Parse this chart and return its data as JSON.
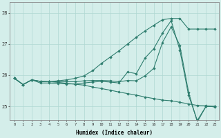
{
  "x": [
    0,
    1,
    2,
    3,
    4,
    5,
    6,
    7,
    8,
    9,
    10,
    11,
    12,
    13,
    14,
    15,
    16,
    17,
    18,
    19,
    20,
    21,
    22,
    23
  ],
  "series": [
    [
      25.9,
      25.7,
      25.85,
      25.75,
      25.75,
      25.73,
      25.72,
      25.72,
      25.75,
      25.78,
      25.8,
      25.78,
      25.75,
      26.1,
      26.05,
      26.55,
      26.85,
      27.35,
      27.75,
      26.8,
      25.35,
      24.55,
      25.0,
      25.0
    ],
    [
      25.9,
      25.7,
      25.85,
      25.8,
      25.79,
      25.82,
      25.85,
      25.9,
      25.98,
      26.15,
      26.38,
      26.58,
      26.78,
      27.0,
      27.22,
      27.42,
      27.6,
      27.78,
      27.82,
      27.82,
      27.48,
      27.48,
      27.48,
      27.48
    ],
    [
      25.9,
      25.7,
      25.85,
      25.8,
      25.79,
      25.77,
      25.74,
      25.71,
      25.68,
      25.62,
      25.57,
      25.52,
      25.46,
      25.41,
      25.36,
      25.3,
      25.25,
      25.2,
      25.18,
      25.13,
      25.08,
      25.03,
      25.02,
      24.98
    ],
    [
      25.9,
      25.7,
      25.85,
      25.8,
      25.79,
      25.79,
      25.79,
      25.79,
      25.82,
      25.83,
      25.83,
      25.82,
      25.79,
      25.83,
      25.82,
      25.98,
      26.22,
      27.05,
      27.55,
      26.95,
      25.45,
      24.5,
      25.0,
      25.0
    ]
  ],
  "line_color": "#2e7d6e",
  "marker_color": "#2e7d6e",
  "bg_color": "#d4eeea",
  "grid_color": "#b0d8d2",
  "xlabel": "Humidex (Indice chaleur)",
  "yticks": [
    25,
    26,
    27,
    28
  ],
  "ylim": [
    24.55,
    28.35
  ],
  "xlim": [
    -0.5,
    23.5
  ],
  "figsize": [
    3.2,
    2.0
  ],
  "dpi": 100
}
